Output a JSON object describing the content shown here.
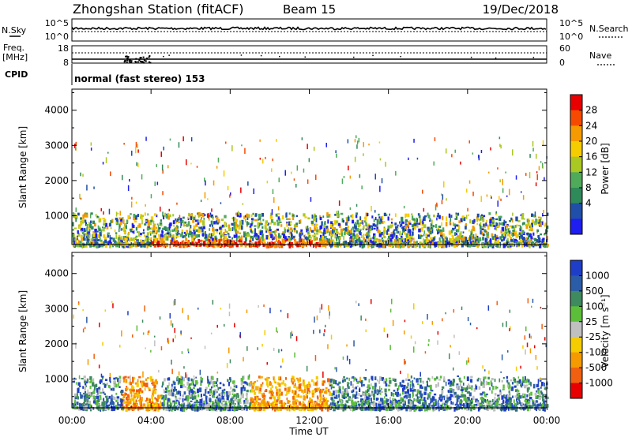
{
  "header": {
    "station": "Zhongshan Station (fitACF)",
    "beam": "Beam 15",
    "date": "19/Dec/2018"
  },
  "top_panels": {
    "nsky_label": "N.Sky",
    "nsky_ticks": [
      "10^5",
      "10^0"
    ],
    "nsearch_label": "N.Search",
    "nsearch_ticks": [
      "10^5",
      "10^0"
    ],
    "freq_label_1": "Freq.",
    "freq_label_2": "[MHz]",
    "freq_ticks": [
      "18",
      "8"
    ],
    "nave_label": "Nave",
    "nave_ticks": [
      "60",
      "0"
    ],
    "cpid_label": "CPID",
    "cpid_text": "normal (fast stereo) 153"
  },
  "chart_data": [
    {
      "type": "heatmap",
      "name": "power",
      "ylabel": "Slant Range [km]",
      "yticks": [
        1000,
        2000,
        3000,
        4000
      ],
      "ylim": [
        180,
        4600
      ],
      "xlim_hours": [
        0,
        24
      ],
      "colorbar_label": "Power [dB]",
      "colorbar_ticks": [
        "4",
        "8",
        "12",
        "16",
        "20",
        "24",
        "28"
      ],
      "colorbar_colors": [
        "#1e1ef0",
        "#1f4fa8",
        "#2f8a5a",
        "#4faa5a",
        "#aac822",
        "#f5cc00",
        "#f59a00",
        "#f54a00",
        "#e80000"
      ]
    },
    {
      "type": "heatmap",
      "name": "velocity",
      "ylabel": "Slant Range [km]",
      "yticks": [
        1000,
        2000,
        3000,
        4000
      ],
      "ylim": [
        180,
        4600
      ],
      "xlim_hours": [
        0,
        24
      ],
      "colorbar_label": "Velocity [m s⁻¹]",
      "colorbar_ticks": [
        "1000",
        "500",
        "100",
        "25",
        "-25",
        "-100",
        "-500",
        "-1000"
      ],
      "colorbar_colors": [
        "#1e3ec8",
        "#2b5ca8",
        "#3f8a5f",
        "#5cbf3a",
        "#c0c0c0",
        "#f5cc00",
        "#f59a00",
        "#f06010",
        "#e80000"
      ]
    }
  ],
  "xaxis": {
    "ticks": [
      "00:00",
      "04:00",
      "08:00",
      "12:00",
      "16:00",
      "20:00",
      "00:00"
    ],
    "label": "Time UT"
  }
}
